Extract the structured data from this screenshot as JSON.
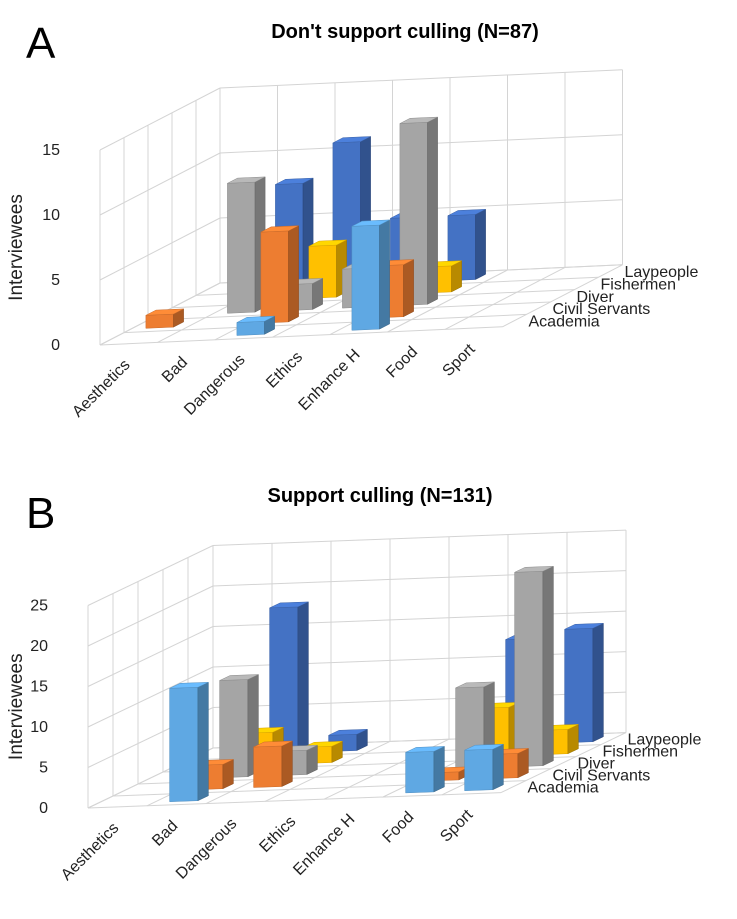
{
  "chart_data": [
    {
      "panel_label": "A",
      "type": "bar",
      "title": "Don't support culling (N=87)",
      "ylabel": "Interviewees",
      "ylim": [
        0,
        15
      ],
      "yticks": [
        0,
        5,
        10,
        15
      ],
      "categories": [
        "Aesthetics",
        "Bad",
        "Dangerous",
        "Ethics",
        "Enhance H",
        "Food",
        "Sport"
      ],
      "series": [
        {
          "name": "Academia",
          "color": "#5fa8e3",
          "values": [
            0,
            0,
            1,
            0,
            8,
            0,
            0
          ]
        },
        {
          "name": "Civil Servants",
          "color": "#ed7d31",
          "values": [
            1,
            0,
            7,
            0,
            4,
            0,
            0
          ]
        },
        {
          "name": "Diver",
          "color": "#a5a5a5",
          "values": [
            0,
            10,
            2,
            3,
            14,
            0,
            0
          ]
        },
        {
          "name": "Fishermen",
          "color": "#ffc000",
          "values": [
            0,
            3,
            4,
            0,
            2,
            0,
            0
          ]
        },
        {
          "name": "Laypeople",
          "color": "#4472c4",
          "values": [
            0,
            8,
            11,
            5,
            5,
            0,
            0
          ]
        }
      ]
    },
    {
      "panel_label": "B",
      "type": "bar",
      "title": "Support culling (N=131)",
      "ylabel": "Interviewees",
      "ylim": [
        0,
        25
      ],
      "yticks": [
        0,
        5,
        10,
        15,
        20,
        25
      ],
      "categories": [
        "Aesthetics",
        "Bad",
        "Dangerous",
        "Ethics",
        "Enhance H",
        "Food",
        "Sport"
      ],
      "series": [
        {
          "name": "Academia",
          "color": "#5fa8e3",
          "values": [
            0,
            14,
            0,
            0,
            0,
            5,
            5
          ]
        },
        {
          "name": "Civil Servants",
          "color": "#ed7d31",
          "values": [
            0,
            3,
            5,
            0,
            0,
            1,
            3
          ]
        },
        {
          "name": "Diver",
          "color": "#a5a5a5",
          "values": [
            0,
            12,
            3,
            0,
            0,
            10,
            24
          ]
        },
        {
          "name": "Fishermen",
          "color": "#ffc000",
          "values": [
            0,
            4,
            2,
            0,
            0,
            6,
            3
          ]
        },
        {
          "name": "Laypeople",
          "color": "#4472c4",
          "values": [
            0,
            18,
            2,
            0,
            0,
            13,
            14
          ]
        }
      ]
    }
  ]
}
